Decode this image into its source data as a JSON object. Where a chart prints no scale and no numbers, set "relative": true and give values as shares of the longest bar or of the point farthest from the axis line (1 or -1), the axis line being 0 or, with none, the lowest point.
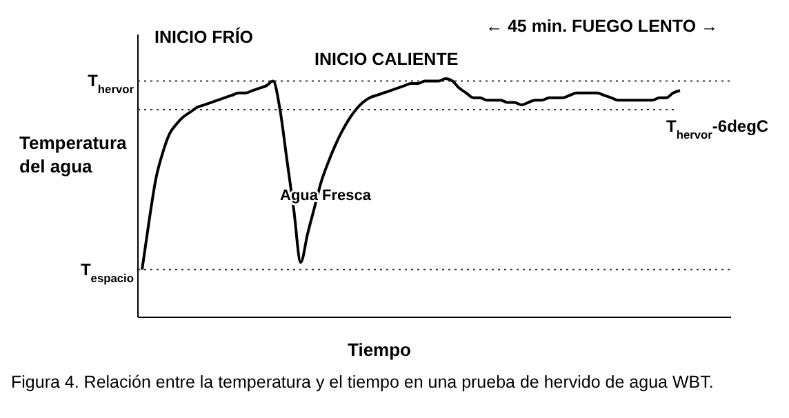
{
  "chart_data": {
    "type": "line",
    "relative": true,
    "xlabel": "Tiempo",
    "ylabel": "Temperatura del agua",
    "categories": [
      null,
      null,
      null,
      null,
      null,
      null,
      null,
      null,
      null,
      null,
      null,
      null,
      null,
      null,
      null,
      null,
      null,
      null,
      null,
      null,
      null,
      null,
      null,
      null,
      null,
      null,
      null,
      null,
      null,
      null,
      null,
      null,
      null,
      null,
      null,
      null,
      null,
      null,
      null,
      null,
      null,
      null,
      null,
      null,
      null,
      null,
      null,
      null,
      null,
      null,
      null,
      null,
      null,
      null,
      null,
      null,
      null,
      null,
      null,
      null,
      null,
      null,
      null,
      null,
      null,
      null,
      null,
      null,
      null,
      null,
      null,
      null,
      null,
      null,
      null,
      null,
      null,
      null,
      null
    ],
    "series": [
      {
        "color": "#000000",
        "values": [
          0.2,
          0.4,
          0.58,
          0.69,
          0.77,
          0.81,
          0.84,
          0.86,
          0.88,
          0.89,
          0.9,
          0.91,
          0.92,
          0.93,
          0.94,
          0.94,
          0.95,
          0.96,
          0.97,
          0.99,
          0.87,
          0.66,
          0.45,
          0.23,
          0.35,
          0.46,
          0.57,
          0.65,
          0.72,
          0.78,
          0.83,
          0.87,
          0.9,
          0.92,
          0.93,
          0.94,
          0.95,
          0.96,
          0.97,
          0.98,
          0.98,
          0.99,
          0.99,
          0.99,
          1.0,
          0.99,
          0.96,
          0.94,
          0.92,
          0.92,
          0.91,
          0.91,
          0.91,
          0.9,
          0.9,
          0.89,
          0.9,
          0.91,
          0.91,
          0.92,
          0.92,
          0.92,
          0.93,
          0.94,
          0.94,
          0.94,
          0.94,
          0.93,
          0.92,
          0.91,
          0.91,
          0.91,
          0.91,
          0.91,
          0.91,
          0.92,
          0.92,
          0.94,
          0.95
        ]
      }
    ],
    "ref_lines": [
      {
        "axis": "y",
        "value": 0.99,
        "label": "T$_{hervor}$",
        "line_style": "dotted"
      },
      {
        "axis": "y",
        "value": 0.2,
        "label": "T$_{espacio}$",
        "line_style": "dotted"
      },
      {
        "axis": "y",
        "value": 0.87,
        "label": "T$_{hervor}$-6degC",
        "line_style": "dotted"
      }
    ],
    "annotations": [
      "INICIO FRÍO",
      "INICIO CALIENTE",
      "← 45 min. FUEGO LENTO →",
      "Agua Fresca",
      "Figura 4. Relación entre la temperatura y el tiempo en una prueba de hervido de agua WBT."
    ],
    "line_style": "solid"
  }
}
